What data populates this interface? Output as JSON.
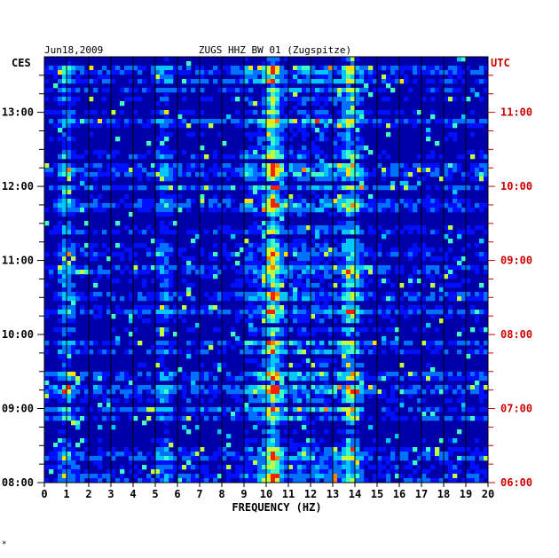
{
  "chart_data": {
    "type": "heatmap",
    "title": "ZUGS HHZ BW 01 (Zugspitze)",
    "date": "Jun18,2009",
    "xlabel": "FREQUENCY (HZ)",
    "x_ticks": [
      "0",
      "1",
      "2",
      "3",
      "4",
      "5",
      "6",
      "7",
      "8",
      "9",
      "10",
      "11",
      "12",
      "13",
      "14",
      "15",
      "16",
      "17",
      "18",
      "19",
      "20"
    ],
    "xlim": [
      0,
      20
    ],
    "left_axis": {
      "label": "CES",
      "ticks": [
        "08:00",
        "09:00",
        "10:00",
        "11:00",
        "12:00",
        "13:00"
      ]
    },
    "right_axis": {
      "label": "UTC",
      "ticks": [
        "06:00",
        "07:00",
        "08:00",
        "09:00",
        "10:00",
        "11:00"
      ]
    },
    "time_range_ces": [
      "08:00",
      "13:45"
    ],
    "grid": true,
    "colormap": [
      "#000060",
      "#0000b8",
      "#0010ff",
      "#0070ff",
      "#00c8ff",
      "#40ffc0",
      "#c0ff40",
      "#ffe000",
      "#ff8000",
      "#ff2000"
    ],
    "background_color": "#0000a8",
    "left_axis_color": "#000000",
    "right_axis_color": "#cc0000",
    "bands": [
      {
        "freq_hz": 10.3,
        "intensity": 0.9,
        "note": "persistent"
      },
      {
        "freq_hz": 13.8,
        "intensity": 0.55,
        "note": "persistent"
      },
      {
        "freq_hz": 5.4,
        "intensity": 0.3,
        "note": "persistent"
      },
      {
        "freq_hz": 1.0,
        "intensity": 0.4,
        "note": "low-frequency"
      }
    ]
  },
  "footer_mark": "*"
}
